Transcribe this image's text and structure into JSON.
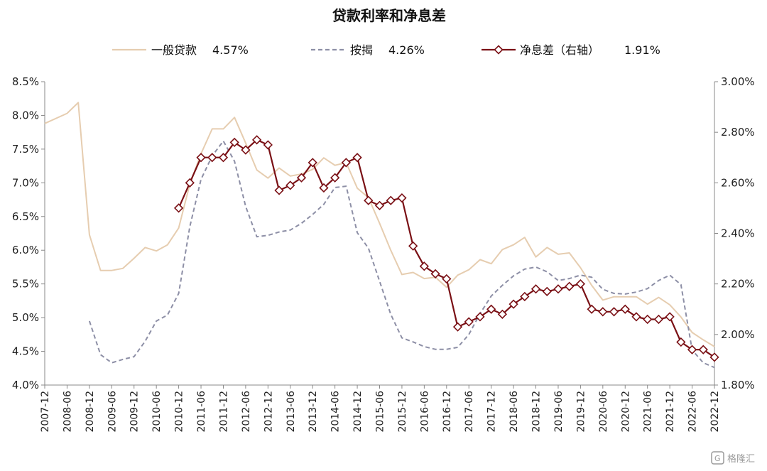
{
  "chart_data": {
    "type": "line",
    "title": "贷款利率和净息差",
    "x_categories": [
      "2007-12",
      "2008-06",
      "2008-12",
      "2009-06",
      "2009-12",
      "2010-06",
      "2010-12",
      "2011-06",
      "2011-12",
      "2012-06",
      "2012-12",
      "2013-06",
      "2013-12",
      "2014-06",
      "2014-12",
      "2015-06",
      "2015-12",
      "2016-06",
      "2016-12",
      "2017-06",
      "2017-12",
      "2018-06",
      "2018-12",
      "2019-06",
      "2019-12",
      "2020-06",
      "2020-12",
      "2021-06",
      "2021-12",
      "2022-06",
      "2022-12"
    ],
    "y_left": {
      "min": 4.0,
      "max": 8.5,
      "step": 0.5,
      "ticks": [
        "4.0%",
        "4.5%",
        "5.0%",
        "5.5%",
        "6.0%",
        "6.5%",
        "7.0%",
        "7.5%",
        "8.0%",
        "8.5%"
      ]
    },
    "y_right": {
      "min": 1.8,
      "max": 3.0,
      "step": 0.2,
      "ticks": [
        "1.80%",
        "2.00%",
        "2.20%",
        "2.40%",
        "2.60%",
        "2.80%",
        "3.00%"
      ]
    },
    "legend": [
      {
        "label": "一般贷款",
        "value": "4.57%"
      },
      {
        "label": "按揭",
        "value": "4.26%"
      },
      {
        "label": "净息差（右轴）",
        "value": "1.91%"
      }
    ],
    "series": [
      {
        "name": "一般贷款",
        "axis": "left",
        "color": "#e6cdb0",
        "style": "solid",
        "points": [
          [
            "2007-12",
            7.88
          ],
          [
            "2008-06",
            8.03
          ],
          [
            "2008-09",
            8.19
          ],
          [
            "2008-12",
            6.23
          ],
          [
            "2009-03",
            5.7
          ],
          [
            "2009-06",
            5.7
          ],
          [
            "2009-09",
            5.73
          ],
          [
            "2009-12",
            5.88
          ],
          [
            "2010-03",
            6.04
          ],
          [
            "2010-06",
            5.99
          ],
          [
            "2010-09",
            6.08
          ],
          [
            "2010-12",
            6.33
          ],
          [
            "2011-03",
            6.98
          ],
          [
            "2011-06",
            7.43
          ],
          [
            "2011-09",
            7.8
          ],
          [
            "2011-12",
            7.8
          ],
          [
            "2012-03",
            7.97
          ],
          [
            "2012-06",
            7.59
          ],
          [
            "2012-09",
            7.19
          ],
          [
            "2012-12",
            7.07
          ],
          [
            "2013-03",
            7.22
          ],
          [
            "2013-06",
            7.1
          ],
          [
            "2013-09",
            7.13
          ],
          [
            "2013-12",
            7.2
          ],
          [
            "2014-03",
            7.37
          ],
          [
            "2014-06",
            7.26
          ],
          [
            "2014-09",
            7.3
          ],
          [
            "2014-12",
            6.92
          ],
          [
            "2015-03",
            6.78
          ],
          [
            "2015-06",
            6.4
          ],
          [
            "2015-09",
            6.0
          ],
          [
            "2015-12",
            5.64
          ],
          [
            "2016-03",
            5.67
          ],
          [
            "2016-06",
            5.58
          ],
          [
            "2016-09",
            5.6
          ],
          [
            "2016-12",
            5.45
          ],
          [
            "2017-03",
            5.63
          ],
          [
            "2017-06",
            5.71
          ],
          [
            "2017-09",
            5.86
          ],
          [
            "2017-12",
            5.8
          ],
          [
            "2018-03",
            6.01
          ],
          [
            "2018-06",
            6.08
          ],
          [
            "2018-09",
            6.19
          ],
          [
            "2018-12",
            5.9
          ],
          [
            "2019-03",
            6.04
          ],
          [
            "2019-06",
            5.94
          ],
          [
            "2019-09",
            5.96
          ],
          [
            "2019-12",
            5.74
          ],
          [
            "2020-03",
            5.48
          ],
          [
            "2020-06",
            5.26
          ],
          [
            "2020-09",
            5.31
          ],
          [
            "2020-12",
            5.31
          ],
          [
            "2021-03",
            5.31
          ],
          [
            "2021-06",
            5.2
          ],
          [
            "2021-09",
            5.3
          ],
          [
            "2021-12",
            5.19
          ],
          [
            "2022-03",
            5.01
          ],
          [
            "2022-06",
            4.78
          ],
          [
            "2022-09",
            4.67
          ],
          [
            "2022-12",
            4.57
          ]
        ]
      },
      {
        "name": "按揭",
        "axis": "left",
        "color": "#8d8fa6",
        "style": "dashed",
        "points": [
          [
            "2008-12",
            4.95
          ],
          [
            "2009-03",
            4.45
          ],
          [
            "2009-06",
            4.33
          ],
          [
            "2009-09",
            4.38
          ],
          [
            "2009-12",
            4.42
          ],
          [
            "2010-03",
            4.65
          ],
          [
            "2010-06",
            4.95
          ],
          [
            "2010-09",
            5.04
          ],
          [
            "2010-12",
            5.36
          ],
          [
            "2011-03",
            6.35
          ],
          [
            "2011-06",
            7.05
          ],
          [
            "2011-09",
            7.4
          ],
          [
            "2011-12",
            7.62
          ],
          [
            "2012-03",
            7.32
          ],
          [
            "2012-06",
            6.65
          ],
          [
            "2012-09",
            6.2
          ],
          [
            "2012-12",
            6.22
          ],
          [
            "2013-03",
            6.27
          ],
          [
            "2013-06",
            6.3
          ],
          [
            "2013-09",
            6.4
          ],
          [
            "2013-12",
            6.53
          ],
          [
            "2014-03",
            6.68
          ],
          [
            "2014-06",
            6.93
          ],
          [
            "2014-09",
            6.95
          ],
          [
            "2014-12",
            6.26
          ],
          [
            "2015-03",
            6.03
          ],
          [
            "2015-06",
            5.54
          ],
          [
            "2015-09",
            5.05
          ],
          [
            "2015-12",
            4.7
          ],
          [
            "2016-03",
            4.64
          ],
          [
            "2016-06",
            4.57
          ],
          [
            "2016-09",
            4.53
          ],
          [
            "2016-12",
            4.53
          ],
          [
            "2017-03",
            4.56
          ],
          [
            "2017-06",
            4.75
          ],
          [
            "2017-09",
            5.06
          ],
          [
            "2017-12",
            5.32
          ],
          [
            "2018-03",
            5.48
          ],
          [
            "2018-06",
            5.62
          ],
          [
            "2018-09",
            5.72
          ],
          [
            "2018-12",
            5.75
          ],
          [
            "2019-03",
            5.68
          ],
          [
            "2019-06",
            5.55
          ],
          [
            "2019-09",
            5.58
          ],
          [
            "2019-12",
            5.63
          ],
          [
            "2020-03",
            5.6
          ],
          [
            "2020-06",
            5.42
          ],
          [
            "2020-09",
            5.36
          ],
          [
            "2020-12",
            5.35
          ],
          [
            "2021-03",
            5.38
          ],
          [
            "2021-06",
            5.43
          ],
          [
            "2021-09",
            5.55
          ],
          [
            "2021-12",
            5.63
          ],
          [
            "2022-03",
            5.49
          ],
          [
            "2022-06",
            4.52
          ],
          [
            "2022-09",
            4.33
          ],
          [
            "2022-12",
            4.26
          ]
        ]
      },
      {
        "name": "净息差（右轴）",
        "axis": "right",
        "color": "#7a1015",
        "style": "solid-diamond",
        "points": [
          [
            "2010-12",
            2.5
          ],
          [
            "2011-03",
            2.6
          ],
          [
            "2011-06",
            2.7
          ],
          [
            "2011-09",
            2.7
          ],
          [
            "2011-12",
            2.7
          ],
          [
            "2012-03",
            2.76
          ],
          [
            "2012-06",
            2.73
          ],
          [
            "2012-09",
            2.77
          ],
          [
            "2012-12",
            2.75
          ],
          [
            "2013-03",
            2.57
          ],
          [
            "2013-06",
            2.59
          ],
          [
            "2013-09",
            2.62
          ],
          [
            "2013-12",
            2.68
          ],
          [
            "2014-03",
            2.58
          ],
          [
            "2014-06",
            2.62
          ],
          [
            "2014-09",
            2.68
          ],
          [
            "2014-12",
            2.7
          ],
          [
            "2015-03",
            2.53
          ],
          [
            "2015-06",
            2.51
          ],
          [
            "2015-09",
            2.53
          ],
          [
            "2015-12",
            2.54
          ],
          [
            "2016-03",
            2.35
          ],
          [
            "2016-06",
            2.27
          ],
          [
            "2016-09",
            2.24
          ],
          [
            "2016-12",
            2.22
          ],
          [
            "2017-03",
            2.03
          ],
          [
            "2017-06",
            2.05
          ],
          [
            "2017-09",
            2.07
          ],
          [
            "2017-12",
            2.1
          ],
          [
            "2018-03",
            2.08
          ],
          [
            "2018-06",
            2.12
          ],
          [
            "2018-09",
            2.15
          ],
          [
            "2018-12",
            2.18
          ],
          [
            "2019-03",
            2.17
          ],
          [
            "2019-06",
            2.18
          ],
          [
            "2019-09",
            2.19
          ],
          [
            "2019-12",
            2.2
          ],
          [
            "2020-03",
            2.1
          ],
          [
            "2020-06",
            2.09
          ],
          [
            "2020-09",
            2.09
          ],
          [
            "2020-12",
            2.1
          ],
          [
            "2021-03",
            2.07
          ],
          [
            "2021-06",
            2.06
          ],
          [
            "2021-09",
            2.06
          ],
          [
            "2021-12",
            2.07
          ],
          [
            "2022-03",
            1.97
          ],
          [
            "2022-06",
            1.94
          ],
          [
            "2022-09",
            1.94
          ],
          [
            "2022-12",
            1.91
          ]
        ]
      }
    ]
  },
  "watermark": {
    "brand": "格隆汇"
  }
}
